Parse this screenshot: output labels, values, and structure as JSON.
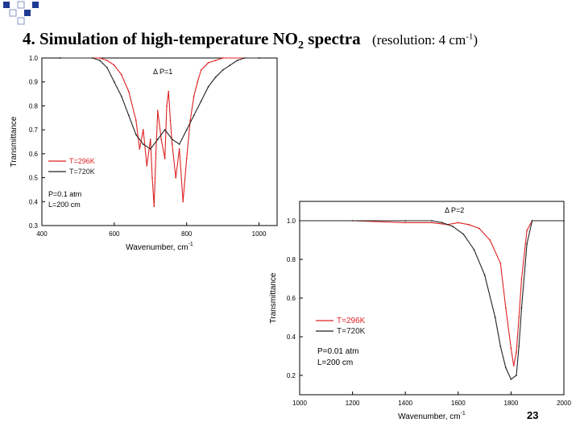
{
  "slide": {
    "title_main": "4. Simulation of high-temperature NO",
    "title_sub": "2",
    "title_rest": " spectra",
    "resolution_text": "(resolution: 4 cm",
    "resolution_sup": "-1",
    "resolution_close": ")",
    "page_number": "23"
  },
  "colors": {
    "red": "#dd2222",
    "black": "#222222",
    "bullet": "#1f3a93",
    "bullet_outline": "#9aa6cc"
  },
  "chart_data": [
    {
      "type": "line",
      "title": "",
      "annotation": "Δ P=1",
      "xlabel": "Wavenumber, cm",
      "xlabel_sup": "-1",
      "ylabel": "Transmittance",
      "xlim": [
        400,
        1050
      ],
      "ylim": [
        0.3,
        1.0
      ],
      "xticks": [
        "400",
        "600",
        "800",
        "1000"
      ],
      "yticks": [
        "0.3",
        "0.4",
        "0.5",
        "0.6",
        "0.7",
        "0.8",
        "0.9",
        "1.0"
      ],
      "legend_position": "left",
      "conditions": [
        "P=0.1 atm",
        "L=200 cm"
      ],
      "series": [
        {
          "name": "T=296K",
          "color": "#dd2222",
          "x": [
            450,
            540,
            560,
            580,
            600,
            620,
            640,
            660,
            670,
            680,
            690,
            700,
            705,
            710,
            715,
            720,
            730,
            740,
            745,
            750,
            755,
            760,
            770,
            780,
            790,
            800,
            810,
            820,
            830,
            840,
            860,
            880,
            900,
            1000
          ],
          "y": [
            1.0,
            1.0,
            1.0,
            0.99,
            0.97,
            0.93,
            0.86,
            0.74,
            0.62,
            0.7,
            0.55,
            0.66,
            0.5,
            0.38,
            0.6,
            0.78,
            0.66,
            0.58,
            0.8,
            0.86,
            0.74,
            0.64,
            0.5,
            0.62,
            0.4,
            0.58,
            0.74,
            0.84,
            0.9,
            0.95,
            0.98,
            0.99,
            1.0,
            1.0
          ]
        },
        {
          "name": "T=720K",
          "color": "#222222",
          "x": [
            450,
            540,
            560,
            580,
            600,
            620,
            640,
            660,
            680,
            700,
            720,
            740,
            760,
            780,
            800,
            820,
            840,
            860,
            880,
            900,
            920,
            940,
            960,
            1000
          ],
          "y": [
            1.0,
            1.0,
            0.99,
            0.96,
            0.9,
            0.84,
            0.76,
            0.68,
            0.64,
            0.62,
            0.66,
            0.7,
            0.66,
            0.64,
            0.7,
            0.76,
            0.82,
            0.88,
            0.92,
            0.95,
            0.97,
            0.99,
            1.0,
            1.0
          ]
        }
      ]
    },
    {
      "type": "line",
      "title": "",
      "annotation": "Δ P=2",
      "xlabel": "Wavenumber, cm",
      "xlabel_sup": "-1",
      "ylabel": "Transmittance",
      "xlim": [
        1000,
        2000
      ],
      "ylim": [
        0.1,
        1.1
      ],
      "xticks": [
        "1000",
        "1200",
        "1400",
        "1600",
        "1800",
        "2000"
      ],
      "yticks": [
        "0.2",
        "0.4",
        "0.6",
        "0.8",
        "1.0"
      ],
      "legend_position": "left",
      "conditions": [
        "P=0.01 atm",
        "L=200 cm"
      ],
      "series": [
        {
          "name": "T=296K",
          "color": "#dd2222",
          "x": [
            1000,
            1200,
            1400,
            1500,
            1560,
            1600,
            1640,
            1680,
            1720,
            1760,
            1780,
            1800,
            1810,
            1820,
            1830,
            1840,
            1860,
            1880,
            2000
          ],
          "y": [
            1.0,
            1.0,
            0.99,
            0.99,
            0.98,
            0.99,
            0.98,
            0.96,
            0.9,
            0.78,
            0.55,
            0.34,
            0.25,
            0.32,
            0.5,
            0.7,
            0.95,
            1.0,
            1.0
          ]
        },
        {
          "name": "T=720K",
          "color": "#222222",
          "x": [
            1000,
            1400,
            1500,
            1540,
            1580,
            1620,
            1660,
            1700,
            1740,
            1760,
            1780,
            1800,
            1820,
            1830,
            1840,
            1860,
            1880,
            2000
          ],
          "y": [
            1.0,
            1.0,
            1.0,
            0.99,
            0.97,
            0.93,
            0.85,
            0.72,
            0.5,
            0.35,
            0.24,
            0.18,
            0.2,
            0.35,
            0.55,
            0.88,
            1.0,
            1.0
          ]
        }
      ]
    }
  ]
}
